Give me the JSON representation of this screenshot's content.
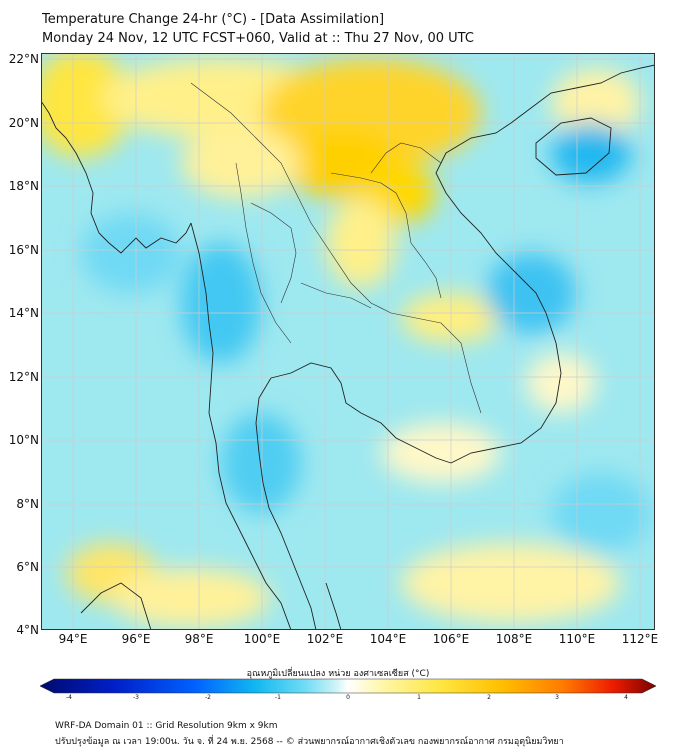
{
  "title": {
    "line1": "Temperature Change 24-hr (°C) - [Data Assimilation]",
    "line2": "Monday 24 Nov, 12 UTC FCST+060, Valid at :: Thu 27 Nov, 00 UTC"
  },
  "map": {
    "lat_labels": [
      "22°N",
      "20°N",
      "18°N",
      "16°N",
      "14°N",
      "12°N",
      "10°N",
      "8°N",
      "6°N",
      "4°N"
    ],
    "lon_labels": [
      "94°E",
      "96°E",
      "98°E",
      "100°E",
      "102°E",
      "104°E",
      "106°E",
      "108°E",
      "110°E",
      "112°E"
    ],
    "lat_range": [
      4,
      22.2
    ],
    "lon_range": [
      93.1,
      112.6
    ],
    "background_color": "#9ee8f0",
    "coast_color": "#222222",
    "gridline_color": "#cccccc"
  },
  "colorbar": {
    "title": "อุณหภูมิเปลี่ยนแปลง หน่วย องศาเซลเซียส (°C)",
    "ticks": [
      "-4",
      "-3",
      "-2",
      "-1",
      "0",
      "1",
      "2",
      "3",
      "4"
    ],
    "range": [
      -4,
      4
    ],
    "colors": [
      "#000a6e",
      "#001fc8",
      "#0060ff",
      "#11b8f0",
      "#6fdcf5",
      "#cdf3f7",
      "#ffffff",
      "#fff8b0",
      "#ffe640",
      "#ffbe00",
      "#ff7a00",
      "#ee1c00",
      "#7a0000"
    ]
  },
  "footer": {
    "line1": "WRF-DA Domain 01 :: Grid Resolution 9km x 9km",
    "line2": "ปรับปรุงข้อมูล ณ เวลา 19:00น. วัน จ. ที่ 24 พ.ย. 2568 -- © ส่วนพยากรณ์อากาศเชิงตัวเลข กองพยากรณ์อากาศ กรมอุตุนิยมวิทยา"
  }
}
